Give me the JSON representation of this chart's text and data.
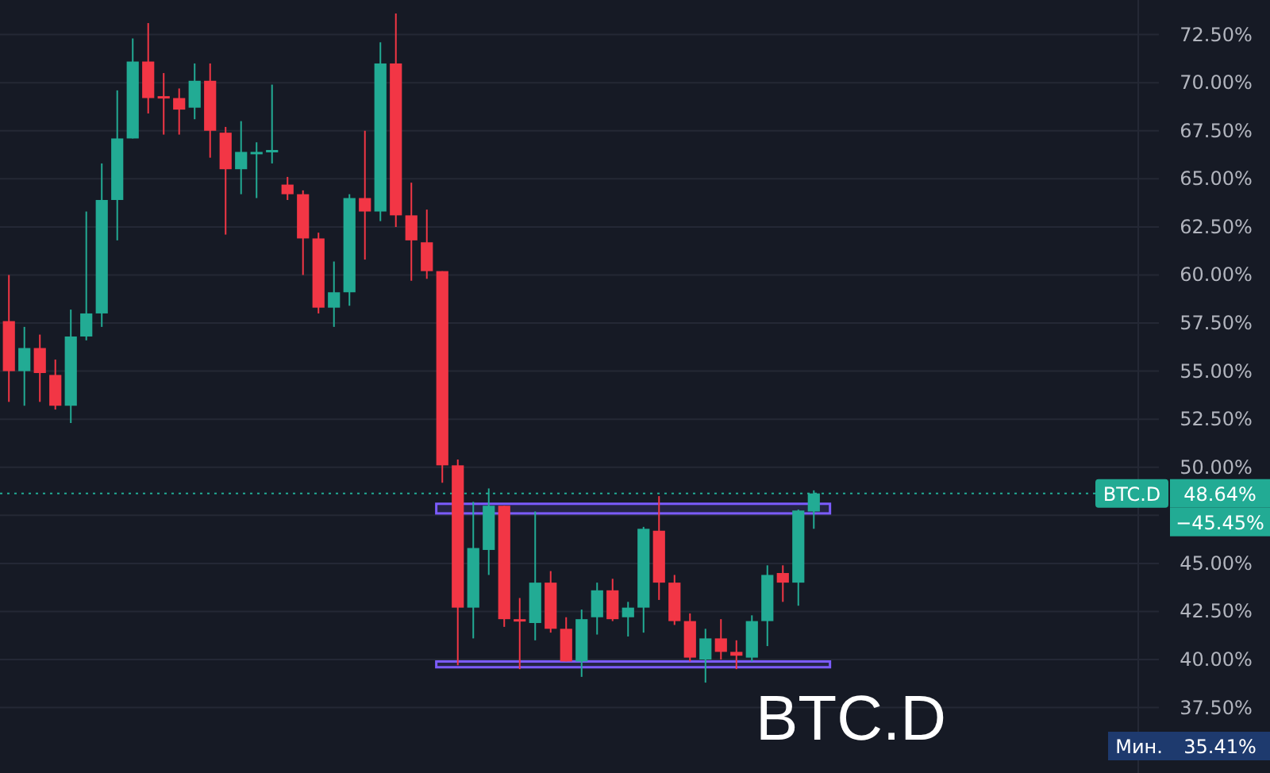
{
  "chart_data": {
    "type": "candlestick",
    "title": "BTC.D",
    "categories": [
      null,
      null,
      null,
      null,
      null,
      null,
      null,
      null,
      null,
      null,
      null,
      null,
      null,
      null,
      null,
      null,
      null,
      null,
      null,
      null,
      null,
      null,
      null,
      null,
      null,
      null,
      null,
      null,
      null,
      null,
      null,
      null,
      null,
      null,
      null,
      null,
      null,
      null,
      null,
      null,
      null,
      null,
      null,
      null,
      null,
      null,
      null,
      null,
      null,
      null,
      null,
      null,
      null,
      null,
      null,
      null,
      null,
      null,
      null,
      null,
      null,
      null,
      null,
      null,
      null,
      null,
      null,
      null,
      null,
      null
    ],
    "ohlc": [
      [
        57.6,
        60.0,
        53.4,
        55.0
      ],
      [
        55.0,
        57.3,
        53.2,
        56.2
      ],
      [
        56.2,
        56.9,
        53.4,
        54.9
      ],
      [
        54.8,
        55.6,
        53.0,
        53.2
      ],
      [
        53.2,
        58.2,
        52.3,
        56.8
      ],
      [
        56.8,
        63.3,
        56.6,
        58.0
      ],
      [
        58.0,
        65.8,
        57.3,
        63.9
      ],
      [
        63.9,
        69.6,
        61.8,
        67.1
      ],
      [
        67.1,
        72.3,
        67.1,
        71.1
      ],
      [
        71.1,
        73.1,
        68.4,
        69.2
      ],
      [
        69.3,
        70.5,
        67.3,
        69.2
      ],
      [
        69.2,
        69.7,
        67.3,
        68.6
      ],
      [
        68.7,
        71.0,
        68.1,
        70.1
      ],
      [
        70.1,
        71.0,
        66.1,
        67.5
      ],
      [
        67.4,
        67.7,
        62.1,
        65.5
      ],
      [
        65.5,
        68.0,
        64.2,
        66.4
      ],
      [
        66.4,
        66.9,
        64.0,
        66.4
      ],
      [
        66.4,
        69.9,
        65.8,
        66.5
      ],
      [
        64.7,
        65.1,
        63.9,
        64.2
      ],
      [
        64.2,
        64.4,
        60.0,
        61.9
      ],
      [
        61.9,
        62.2,
        58.0,
        58.3
      ],
      [
        58.3,
        60.7,
        57.3,
        59.1
      ],
      [
        59.1,
        64.2,
        58.4,
        64.0
      ],
      [
        64.0,
        67.5,
        60.8,
        63.3
      ],
      [
        63.3,
        72.1,
        62.8,
        71.0
      ],
      [
        71.0,
        73.6,
        62.5,
        63.1
      ],
      [
        63.1,
        64.8,
        59.7,
        61.8
      ],
      [
        61.7,
        63.4,
        59.8,
        60.2
      ],
      [
        60.2,
        60.2,
        49.2,
        50.1
      ],
      [
        50.1,
        50.4,
        39.7,
        42.7
      ],
      [
        42.7,
        48.2,
        41.1,
        45.8
      ],
      [
        45.7,
        48.9,
        44.4,
        48.0
      ],
      [
        48.0,
        48.0,
        41.7,
        42.1
      ],
      [
        42.1,
        43.2,
        39.5,
        42.0
      ],
      [
        41.9,
        47.7,
        41.0,
        44.0
      ],
      [
        44.0,
        44.6,
        41.4,
        41.6
      ],
      [
        41.6,
        42.2,
        39.9,
        39.9
      ],
      [
        39.9,
        42.6,
        39.1,
        42.1
      ],
      [
        42.2,
        44.0,
        41.3,
        43.6
      ],
      [
        43.6,
        44.2,
        42.0,
        42.1
      ],
      [
        42.2,
        43.0,
        41.2,
        42.7
      ],
      [
        42.7,
        46.9,
        41.4,
        46.8
      ],
      [
        46.7,
        48.5,
        43.1,
        44.0
      ],
      [
        44.0,
        44.4,
        41.8,
        42.0
      ],
      [
        42.0,
        42.4,
        39.9,
        40.1
      ],
      [
        40.0,
        41.6,
        38.8,
        41.1
      ],
      [
        41.1,
        42.1,
        40.0,
        40.4
      ],
      [
        40.4,
        41.0,
        39.5,
        40.2
      ],
      [
        40.1,
        42.3,
        39.9,
        42.0
      ],
      [
        42.0,
        44.9,
        40.7,
        44.4
      ],
      [
        44.5,
        44.9,
        43.0,
        44.0
      ],
      [
        44.0,
        47.8,
        42.8,
        47.75
      ],
      [
        47.7,
        48.8,
        46.8,
        48.64
      ],
      null,
      null,
      null,
      null,
      null,
      null,
      null,
      null,
      null,
      null,
      null,
      null,
      null,
      null,
      null,
      null,
      null
    ],
    "ylim": [
      34.1,
      74.3
    ],
    "yticks": [
      {
        "value": 37.5,
        "label": "37.50%"
      },
      {
        "value": 40,
        "label": "40.00%"
      },
      {
        "value": 42.5,
        "label": "42.50%"
      },
      {
        "value": 45,
        "label": "45.00%"
      },
      {
        "value": 47.5,
        "label": null
      },
      {
        "value": 50,
        "label": "50.00%"
      },
      {
        "value": 52.5,
        "label": "52.50%"
      },
      {
        "value": 55,
        "label": "55.00%"
      },
      {
        "value": 57.5,
        "label": "57.50%"
      },
      {
        "value": 60,
        "label": "60.00%"
      },
      {
        "value": 62.5,
        "label": "62.50%"
      },
      {
        "value": 65,
        "label": "65.00%"
      },
      {
        "value": 67.5,
        "label": "67.50%"
      },
      {
        "value": 70,
        "label": "70.00%"
      },
      {
        "value": 72.5,
        "label": "72.50%"
      }
    ],
    "tick_labels": "y",
    "grid": "y",
    "ref_lines": [
      {
        "axis": "y",
        "value": 48.64,
        "label": "BTC.D",
        "color": "#22ab94",
        "line_style": "dotted"
      }
    ],
    "bands": [
      {
        "axis": "y",
        "from": 47.6,
        "to": 48.1,
        "color": "#7c5cff"
      },
      {
        "axis": "y",
        "from": 39.6,
        "to": 39.9,
        "color": "#7c5cff"
      }
    ],
    "annotations": [
      "48.64%",
      "−45.45%",
      "Мин.",
      "35.41%"
    ]
  }
}
